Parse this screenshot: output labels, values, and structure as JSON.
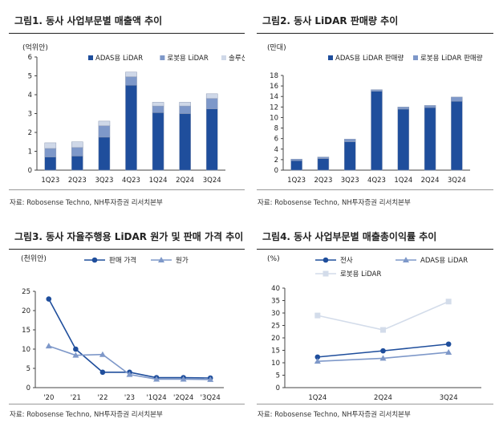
{
  "figures": [
    {
      "title": "그림1. 동사 사업부문별 매출액 추이",
      "source": "자료: Robosense Techno, NH투자증권 리서치본부"
    },
    {
      "title": "그림2. 동사 LiDAR 판매량 추이",
      "source": "자료: Robosense Techno, NH투자증권 리서치본부"
    },
    {
      "title": "그림3. 동사 자율주행용 LiDAR 원가 및 판매 가격 추이",
      "source": "자료: Robosense Techno, NH투자증권 리서치본부"
    },
    {
      "title": "그림4. 동사 사업부문별 매출총이익률 추이",
      "source": "자료: Robosense Techno, NH투자증권 리서치본부"
    }
  ],
  "chart_data": [
    {
      "type": "bar",
      "stacked": true,
      "unit": "(억위안)",
      "categories": [
        "1Q23",
        "2Q23",
        "3Q23",
        "4Q23",
        "1Q24",
        "2Q24",
        "3Q24"
      ],
      "series": [
        {
          "name": "ADAS용 LiDAR",
          "color": "#1f4e9c",
          "values": [
            0.7,
            0.75,
            1.75,
            4.5,
            3.05,
            3.0,
            3.25
          ]
        },
        {
          "name": "로봇용 LiDAR",
          "color": "#7e98c9",
          "values": [
            0.45,
            0.45,
            0.6,
            0.45,
            0.35,
            0.4,
            0.55
          ]
        },
        {
          "name": "솔루션",
          "color": "#cfd8e8",
          "values": [
            0.3,
            0.3,
            0.25,
            0.25,
            0.2,
            0.2,
            0.25
          ]
        }
      ],
      "ylim": [
        0,
        6
      ],
      "yticks": [
        0,
        1,
        2,
        3,
        4,
        5,
        6
      ],
      "legend": "top-right",
      "grid": false
    },
    {
      "type": "bar",
      "stacked": true,
      "unit": "(만대)",
      "categories": [
        "1Q23",
        "2Q23",
        "3Q23",
        "4Q23",
        "1Q24",
        "2Q24",
        "3Q24"
      ],
      "series": [
        {
          "name": "ADAS용 LiDAR 판매량",
          "color": "#1f4e9c",
          "values": [
            1.8,
            2.2,
            5.4,
            15.0,
            11.6,
            11.9,
            13.1
          ]
        },
        {
          "name": "로봇용 LiDAR 판매량",
          "color": "#7e98c9",
          "values": [
            0.3,
            0.3,
            0.5,
            0.3,
            0.4,
            0.4,
            0.8
          ]
        }
      ],
      "ylim": [
        0,
        18
      ],
      "yticks": [
        0,
        2,
        4,
        6,
        8,
        10,
        12,
        14,
        16,
        18
      ],
      "legend": "top-right",
      "grid": false
    },
    {
      "type": "line",
      "unit": "(천위안)",
      "categories": [
        "'20",
        "'21",
        "'22",
        "'23",
        "'1Q24",
        "'2Q24",
        "'3Q24"
      ],
      "series": [
        {
          "name": "판매 가격",
          "color": "#1f4e9c",
          "marker": "circle",
          "values": [
            23.0,
            10.0,
            4.0,
            4.0,
            2.6,
            2.6,
            2.5
          ]
        },
        {
          "name": "원가",
          "color": "#7e98c9",
          "marker": "triangle",
          "values": [
            10.8,
            8.4,
            8.6,
            3.4,
            2.2,
            2.2,
            2.1
          ]
        }
      ],
      "ylim": [
        0,
        25
      ],
      "yticks": [
        0,
        5,
        10,
        15,
        20,
        25
      ],
      "legend": "top",
      "grid": false
    },
    {
      "type": "line",
      "unit": "(%)",
      "categories": [
        "1Q24",
        "2Q24",
        "3Q24"
      ],
      "series": [
        {
          "name": "전사",
          "color": "#1f4e9c",
          "marker": "circle",
          "values": [
            12.3,
            14.8,
            17.5
          ]
        },
        {
          "name": "ADAS용 LiDAR",
          "color": "#7e98c9",
          "marker": "triangle",
          "values": [
            10.6,
            11.8,
            14.2
          ]
        },
        {
          "name": "로봇용 LiDAR",
          "color": "#d3dcea",
          "marker": "square",
          "values": [
            29.0,
            23.2,
            34.6
          ]
        }
      ],
      "ylim": [
        0,
        40
      ],
      "yticks": [
        0,
        5,
        10,
        15,
        20,
        25,
        30,
        35,
        40
      ],
      "legend": "top",
      "grid": false
    }
  ]
}
